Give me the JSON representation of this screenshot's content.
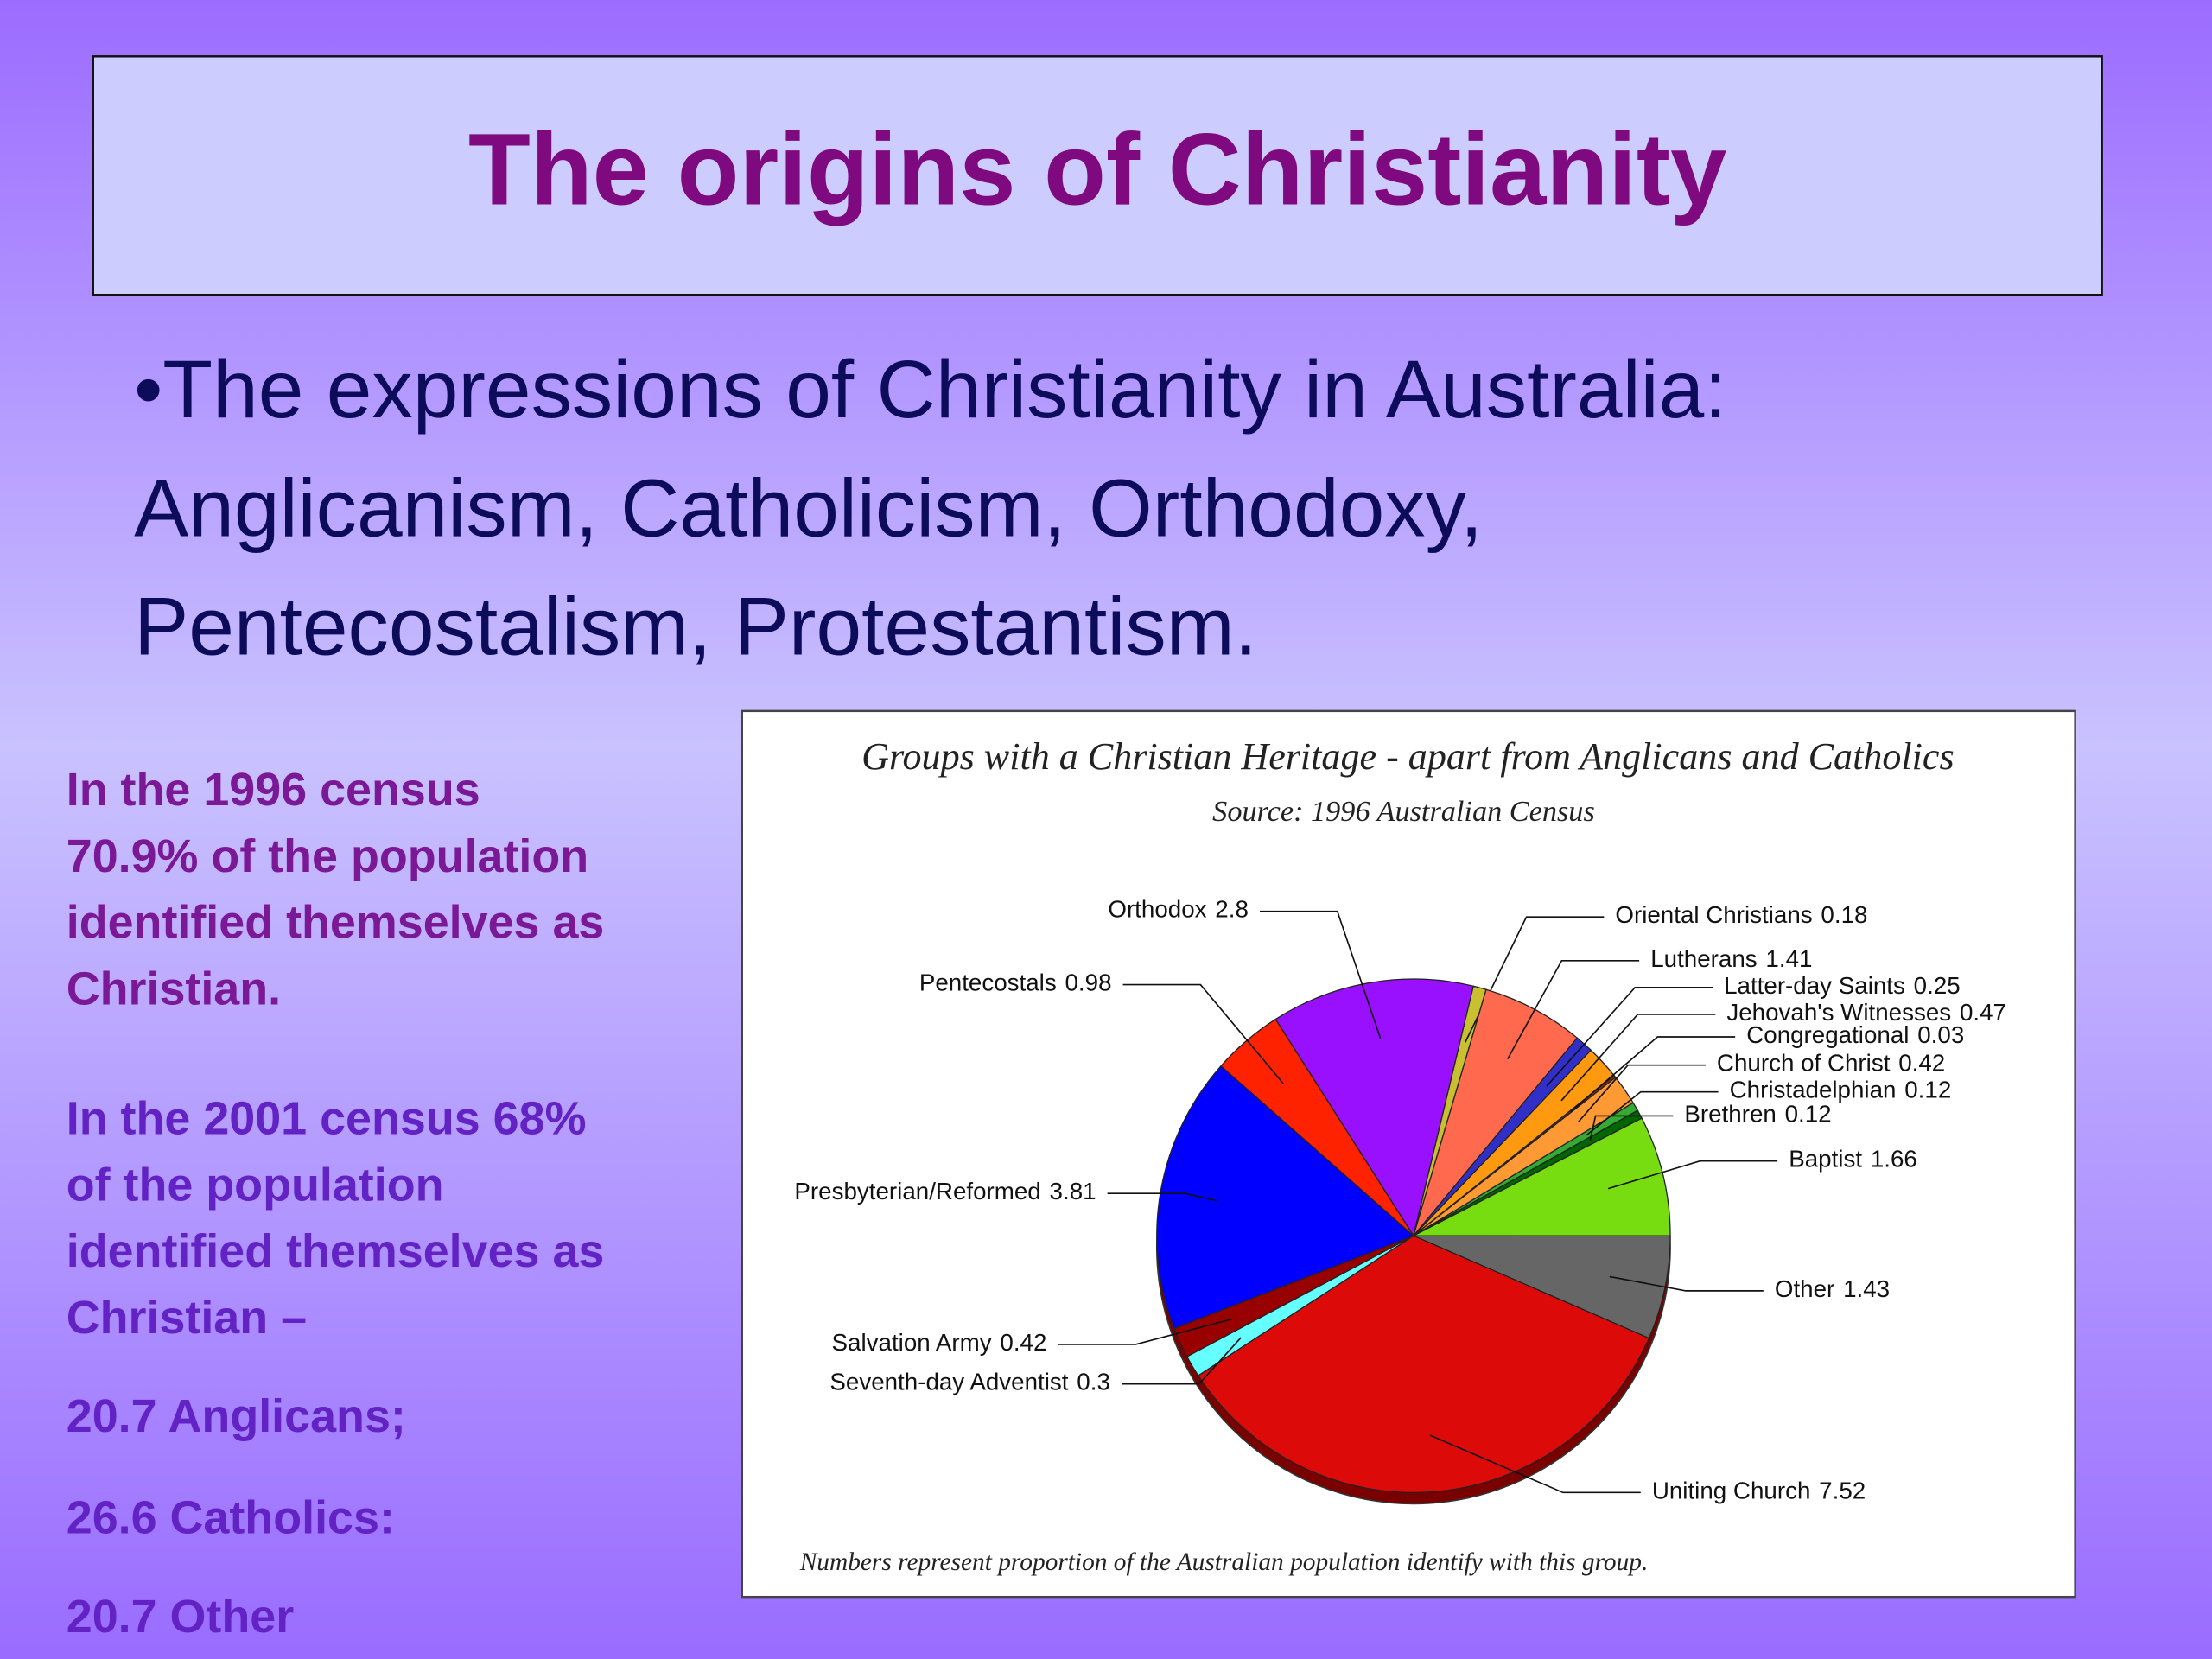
{
  "slide": {
    "title": "The origins of Christianity",
    "bullet_lines": [
      "•The expressions of Christianity in Australia:",
      "Anglicanism, Catholicism, Orthodoxy,",
      "Pentecostalism, Protestantism."
    ],
    "census_1996_lines": [
      "In the 1996 census",
      "70.9% of the population",
      "identified themselves as",
      "Christian."
    ],
    "census_2001_lines": [
      "In the 2001 census 68%",
      "of the population",
      "identified themselves as",
      "Christian –"
    ],
    "breakdown": [
      "20.7 Anglicans;",
      "26.6 Catholics:",
      "20.7 Other"
    ]
  },
  "chart_data": {
    "type": "pie",
    "title": "Groups with a Christian Heritage - apart from Anglicans and Catholics",
    "subtitle": "Source: 1996 Australian Census",
    "footnote": "Numbers represent proportion of the Australian population identify with this group.",
    "categories": [
      "Orthodox",
      "Oriental Christians",
      "Lutherans",
      "Latter-day Saints",
      "Jehovah's Witnesses",
      "Congregational",
      "Church of Christ",
      "Christadelphian",
      "Brethren",
      "Baptist",
      "Other",
      "Uniting Church",
      "Seventh-day Adventist",
      "Salvation Army",
      "Presbyterian/Reformed",
      "Pentecostals"
    ],
    "values": [
      2.8,
      0.18,
      1.41,
      0.25,
      0.47,
      0.03,
      0.42,
      0.12,
      0.12,
      1.66,
      1.43,
      7.52,
      0.3,
      0.42,
      3.81,
      0.98
    ],
    "colors": [
      "#9910ff",
      "#c8c030",
      "#ff6a4e",
      "#3030c8",
      "#ff9a10",
      "#993300",
      "#ff9933",
      "#33aa33",
      "#006600",
      "#77dd11",
      "#666666",
      "#dd0a0a",
      "#66ffff",
      "#990000",
      "#0000ff",
      "#ff2200"
    ]
  }
}
